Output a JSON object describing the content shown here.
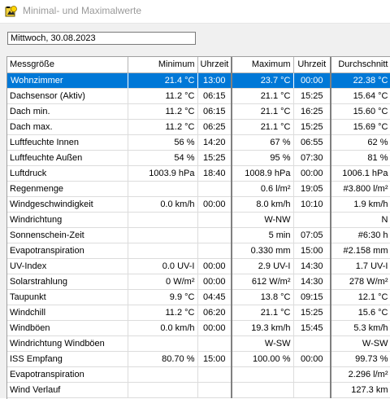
{
  "window": {
    "title": "Minimal- und Maximalwerte"
  },
  "date": "Mittwoch, 30.08.2023",
  "columns": {
    "name": "Messgröße",
    "min": "Minimum",
    "min_time": "Uhrzeit",
    "max": "Maximum",
    "max_time": "Uhrzeit",
    "avg": "Durchschnitt"
  },
  "selected_row": 0,
  "rows": [
    {
      "name": "Wohnzimmer",
      "min": "21.4 °C",
      "min_time": "13:00",
      "max": "23.7 °C",
      "max_time": "00:00",
      "avg": "22.38 °C"
    },
    {
      "name": "Dachsensor (Aktiv)",
      "min": "11.2 °C",
      "min_time": "06:15",
      "max": "21.1 °C",
      "max_time": "15:25",
      "avg": "15.64 °C"
    },
    {
      "name": "Dach min.",
      "min": "11.2 °C",
      "min_time": "06:15",
      "max": "21.1 °C",
      "max_time": "16:25",
      "avg": "15.60 °C"
    },
    {
      "name": "Dach max.",
      "min": "11.2 °C",
      "min_time": "06:25",
      "max": "21.1 °C",
      "max_time": "15:25",
      "avg": "15.69 °C"
    },
    {
      "name": "Luftfeuchte Innen",
      "min": "56 %",
      "min_time": "14:20",
      "max": "67 %",
      "max_time": "06:55",
      "avg": "62 %"
    },
    {
      "name": "Luftfeuchte Außen",
      "min": "54 %",
      "min_time": "15:25",
      "max": "95 %",
      "max_time": "07:30",
      "avg": "81 %"
    },
    {
      "name": "Luftdruck",
      "min": "1003.9 hPa",
      "min_time": "18:40",
      "max": "1008.9 hPa",
      "max_time": "00:00",
      "avg": "1006.1 hPa"
    },
    {
      "name": "Regenmenge",
      "min": "",
      "min_time": "",
      "max": "0.6 l/m²",
      "max_time": "19:05",
      "avg": "#3.800 l/m²"
    },
    {
      "name": "Windgeschwindigkeit",
      "min": "0.0 km/h",
      "min_time": "00:00",
      "max": "8.0 km/h",
      "max_time": "10:10",
      "avg": "1.9 km/h"
    },
    {
      "name": "Windrichtung",
      "min": "",
      "min_time": "",
      "max": "W-NW",
      "max_time": "",
      "avg": "N"
    },
    {
      "name": "Sonnenschein-Zeit",
      "min": "",
      "min_time": "",
      "max": "5 min",
      "max_time": "07:05",
      "avg": "#6:30 h"
    },
    {
      "name": "Evapotranspiration",
      "min": "",
      "min_time": "",
      "max": "0.330 mm",
      "max_time": "15:00",
      "avg": "#2.158 mm"
    },
    {
      "name": "UV-Index",
      "min": "0.0 UV-I",
      "min_time": "00:00",
      "max": "2.9 UV-I",
      "max_time": "14:30",
      "avg": "1.7 UV-I"
    },
    {
      "name": "Solarstrahlung",
      "min": "0 W/m²",
      "min_time": "00:00",
      "max": "612 W/m²",
      "max_time": "14:30",
      "avg": "278 W/m²"
    },
    {
      "name": "Taupunkt",
      "min": "9.9 °C",
      "min_time": "04:45",
      "max": "13.8 °C",
      "max_time": "09:15",
      "avg": "12.1 °C"
    },
    {
      "name": "Windchill",
      "min": "11.2 °C",
      "min_time": "06:20",
      "max": "21.1 °C",
      "max_time": "15:25",
      "avg": "15.6 °C"
    },
    {
      "name": "Windböen",
      "min": "0.0 km/h",
      "min_time": "00:00",
      "max": "19.3 km/h",
      "max_time": "15:45",
      "avg": "5.3 km/h"
    },
    {
      "name": "Windrichtung Windböen",
      "min": "",
      "min_time": "",
      "max": "W-SW",
      "max_time": "",
      "avg": "W-SW"
    },
    {
      "name": "ISS Empfang",
      "min": "80.70 %",
      "min_time": "15:00",
      "max": "100.00 %",
      "max_time": "00:00",
      "avg": "99.73 %"
    },
    {
      "name": "Evapotranspiration",
      "min": "",
      "min_time": "",
      "max": "",
      "max_time": "",
      "avg": "2.296 l/m²"
    },
    {
      "name": "Wind Verlauf",
      "min": "",
      "min_time": "",
      "max": "",
      "max_time": "",
      "avg": "127.3 km"
    }
  ]
}
